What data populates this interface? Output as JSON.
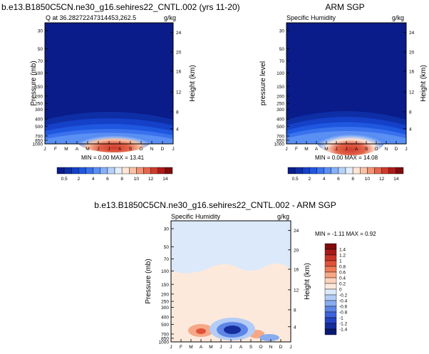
{
  "chart_data": [
    {
      "type": "heatmap",
      "title_left": "Q at 36.28272247314453,262.5",
      "title_right": "g/kg",
      "figure_title": "b.e13.B1850C5CN.ne30_g16.sehires22_CNTL.002 (yrs 11-20)",
      "ylabel_left": "Pressure (mb)",
      "ylabel_right": "Height (km)",
      "x_ticks": [
        "J",
        "F",
        "M",
        "A",
        "M",
        "J",
        "J",
        "A",
        "S",
        "O",
        "N",
        "D",
        "J"
      ],
      "y_ticks": [
        "30",
        "50",
        "70",
        "100",
        "150",
        "200",
        "250",
        "300",
        "400",
        "500",
        "700",
        "850",
        "1000"
      ],
      "height_ticks": [
        "24",
        "20",
        "16",
        "12",
        "8",
        "4"
      ],
      "stats": "MIN =  0.00 MAX = 13.41",
      "colorbar_labels": [
        "0.5",
        "2",
        "4",
        "6",
        "8",
        "10",
        "12",
        "14"
      ]
    },
    {
      "type": "heatmap",
      "title": "ARM SGP",
      "title_left": "Specific Humidity",
      "title_right": "g/kg",
      "ylabel_left": "pressure level",
      "ylabel_right": "Height (km)",
      "x_ticks": [
        "J",
        "F",
        "M",
        "A",
        "M",
        "J",
        "J",
        "A",
        "S",
        "O",
        "N",
        "D",
        "J"
      ],
      "y_ticks": [
        "30",
        "50",
        "70",
        "100",
        "150",
        "200",
        "250",
        "300",
        "400",
        "500",
        "700",
        "850",
        "1000"
      ],
      "height_ticks": [
        "24",
        "20",
        "16",
        "12",
        "8",
        "4"
      ],
      "stats": "MIN =  0.00 MAX = 14.08",
      "colorbar_labels": [
        "0.5",
        "2",
        "4",
        "6",
        "8",
        "10",
        "12",
        "14"
      ]
    },
    {
      "type": "heatmap",
      "title": "b.e13.B1850C5CN.ne30_g16.sehires22_CNTL.002 - ARM SGP",
      "title_left": "Specific Humidity",
      "title_right": "g/kg",
      "ylabel_left": "Pressure (mb)",
      "ylabel_right": "Height (km)",
      "x_ticks": [
        "J",
        "F",
        "M",
        "A",
        "M",
        "J",
        "J",
        "A",
        "S",
        "O",
        "N",
        "D",
        "J"
      ],
      "y_ticks": [
        "30",
        "50",
        "70",
        "100",
        "150",
        "200",
        "250",
        "300",
        "400",
        "500",
        "700",
        "850",
        "1000"
      ],
      "height_ticks": [
        "24",
        "20",
        "16",
        "12",
        "8",
        "4"
      ],
      "stats": "MIN = -1.11 MAX =  0.92",
      "colorbar_labels": [
        "1.4",
        "1.2",
        "1",
        "0.8",
        "0.6",
        "0.4",
        "0.2",
        "0",
        "-0.2",
        "-0.4",
        "-0.6",
        "-0.8",
        "-1",
        "-1.2",
        "-1.4"
      ]
    }
  ],
  "colors": {
    "q_scale": [
      "#0a1b8a",
      "#0e2ea6",
      "#1540c8",
      "#1f57e0",
      "#3a72ee",
      "#5a8ff3",
      "#86b0f7",
      "#b6d2fa",
      "#e2eefc",
      "#fde6d7",
      "#f8c2a5",
      "#f19576",
      "#e4664c",
      "#cf3a2b",
      "#ad1b1b",
      "#7e0c0c"
    ],
    "diff_scale": [
      "#7e0c0c",
      "#a71a1a",
      "#c93327",
      "#e0533a",
      "#ef7c58",
      "#f6a886",
      "#fbd2bb",
      "#fde9dc",
      "#dbe9fb",
      "#b3cdf6",
      "#88acef",
      "#5e86e6",
      "#3e63d8",
      "#2543c2",
      "#142e9b",
      "#0a1a70"
    ]
  }
}
